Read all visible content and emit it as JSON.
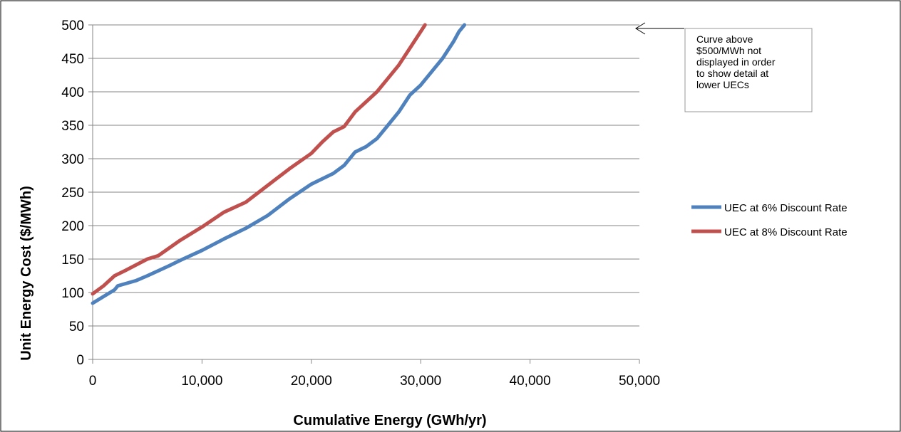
{
  "chart_data": {
    "type": "line",
    "xlabel": "Cumulative Energy (GWh/yr)",
    "ylabel": "Unit Energy Cost ($/MWh)",
    "xlim": [
      0,
      50000
    ],
    "ylim": [
      0,
      500
    ],
    "x_ticks": [
      "0",
      "10,000",
      "20,000",
      "30,000",
      "40,000",
      "50,000"
    ],
    "y_ticks": [
      "0",
      "50",
      "100",
      "150",
      "200",
      "250",
      "300",
      "350",
      "400",
      "450",
      "500"
    ],
    "grid": "horizontal",
    "legend_position": "right",
    "series": [
      {
        "name": "UEC at 6% Discount Rate",
        "color": "#4F81BD",
        "points": [
          [
            0,
            84
          ],
          [
            1000,
            94
          ],
          [
            2000,
            104
          ],
          [
            2300,
            110
          ],
          [
            4000,
            118
          ],
          [
            5000,
            125
          ],
          [
            7000,
            140
          ],
          [
            8000,
            148
          ],
          [
            10000,
            163
          ],
          [
            12000,
            180
          ],
          [
            14000,
            196
          ],
          [
            16000,
            215
          ],
          [
            18000,
            240
          ],
          [
            20000,
            262
          ],
          [
            22000,
            278
          ],
          [
            23000,
            290
          ],
          [
            24000,
            310
          ],
          [
            25000,
            318
          ],
          [
            26000,
            330
          ],
          [
            27000,
            350
          ],
          [
            28000,
            370
          ],
          [
            29000,
            395
          ],
          [
            30000,
            410
          ],
          [
            31000,
            430
          ],
          [
            32000,
            450
          ],
          [
            33000,
            475
          ],
          [
            33500,
            490
          ],
          [
            34000,
            500
          ]
        ]
      },
      {
        "name": "UEC at 8% Discount Rate",
        "color": "#C0504D",
        "points": [
          [
            0,
            98
          ],
          [
            1000,
            110
          ],
          [
            2000,
            125
          ],
          [
            3000,
            133
          ],
          [
            5000,
            150
          ],
          [
            6000,
            155
          ],
          [
            8000,
            178
          ],
          [
            10000,
            198
          ],
          [
            12000,
            220
          ],
          [
            14000,
            235
          ],
          [
            16000,
            260
          ],
          [
            18000,
            285
          ],
          [
            20000,
            308
          ],
          [
            21000,
            325
          ],
          [
            22000,
            340
          ],
          [
            23000,
            348
          ],
          [
            24000,
            370
          ],
          [
            25000,
            385
          ],
          [
            26000,
            400
          ],
          [
            27000,
            420
          ],
          [
            28000,
            440
          ],
          [
            29000,
            465
          ],
          [
            30000,
            490
          ],
          [
            30400,
            500
          ]
        ]
      }
    ],
    "annotation": {
      "lines": [
        "Curve above",
        "$500/MWh not",
        "displayed in order",
        "to show detail at",
        "lower UECs"
      ]
    }
  }
}
